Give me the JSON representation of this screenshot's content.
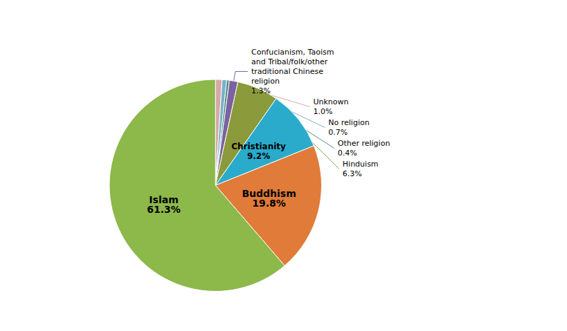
{
  "chart_data": {
    "type": "pie",
    "categories": [
      "Unknown",
      "No religion",
      "Other religion",
      "Confucianism, Taoism\nand Tribal/folk/other\ntraditional Chinese\nreligion",
      "Hinduism",
      "Christianity",
      "Buddhism",
      "Islam"
    ],
    "values": [
      1.0,
      0.7,
      0.4,
      1.3,
      6.3,
      9.2,
      19.8,
      61.3
    ],
    "value_labels": [
      "1.0%",
      "0.7%",
      "0.4%",
      "1.3%",
      "6.3%",
      "9.2%",
      "19.8%",
      "61.3%"
    ],
    "colors": [
      "#d8a8a8",
      "#7ab0c8",
      "#4a9080",
      "#7b62a0",
      "#8b9a3a",
      "#2aabcb",
      "#e07b39",
      "#8db84a"
    ]
  }
}
